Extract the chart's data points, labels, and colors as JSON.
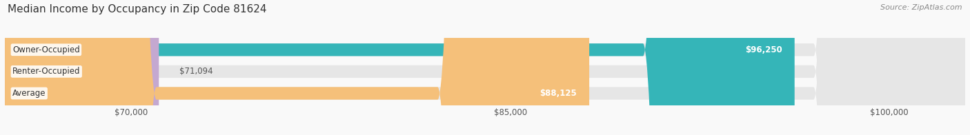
{
  "title": "Median Income by Occupancy in Zip Code 81624",
  "source": "Source: ZipAtlas.com",
  "categories": [
    "Owner-Occupied",
    "Renter-Occupied",
    "Average"
  ],
  "values": [
    96250,
    71094,
    88125
  ],
  "bar_colors": [
    "#35b5b8",
    "#c4a8d0",
    "#f5c07a"
  ],
  "label_colors": [
    "#ffffff",
    "#555555",
    "#ffffff"
  ],
  "xlim_min": 65000,
  "xlim_max": 103000,
  "xticks": [
    70000,
    85000,
    100000
  ],
  "xtick_labels": [
    "$70,000",
    "$85,000",
    "$100,000"
  ],
  "value_labels": [
    "$96,250",
    "$71,094",
    "$88,125"
  ],
  "title_fontsize": 11,
  "source_fontsize": 8,
  "bar_label_fontsize": 8.5,
  "tick_fontsize": 8.5,
  "background_color": "#f9f9f9",
  "bar_height": 0.58
}
